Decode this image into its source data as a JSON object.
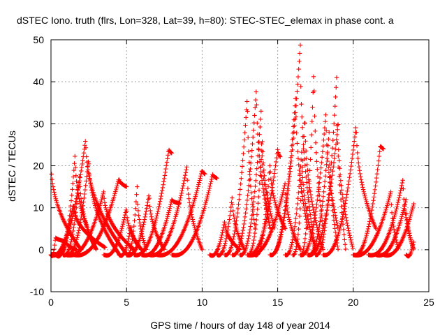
{
  "chart_data": {
    "type": "scatter",
    "title": "dSTEC Iono. truth (flrs, Lon=328, Lat=39, h=80): STEC-STEC_elemax in phase cont. a",
    "xlabel": "GPS time / hours of day 148 of year 2014",
    "ylabel": "dSTEC  / TECUs",
    "xlim": [
      0,
      25
    ],
    "ylim": [
      -10,
      50
    ],
    "x_ticks": [
      0,
      5,
      10,
      15,
      20,
      25
    ],
    "y_ticks": [
      -10,
      0,
      10,
      20,
      30,
      40,
      50
    ],
    "grid": true,
    "marker": "+",
    "color": "#ff0000",
    "arcs": [
      {
        "t0": 0.0,
        "tpk": 0.0,
        "t1": 2.0,
        "peak": 21.5,
        "end": 0.0
      },
      {
        "t0": 0.0,
        "tpk": 1.5,
        "t1": 3.6,
        "peak": 11.0,
        "end": 0.5
      },
      {
        "t0": 0.0,
        "tpk": 0.3,
        "t1": 1.0,
        "peak": 3.0,
        "end": 2.0
      },
      {
        "t0": 0.3,
        "tpk": 1.0,
        "t1": 1.7,
        "peak": 2.0,
        "end": 0.0
      },
      {
        "t0": 0.5,
        "tpk": 1.6,
        "t1": 3.0,
        "peak": 23.0,
        "end": 0.0
      },
      {
        "t0": 0.8,
        "tpk": 1.9,
        "t1": 3.0,
        "peak": 18.0,
        "end": 0.0
      },
      {
        "t0": 0.0,
        "tpk": 2.3,
        "t1": 5.0,
        "peak": 26.5,
        "end": -1.0
      },
      {
        "t0": 1.0,
        "tpk": 2.5,
        "t1": 4.5,
        "peak": 22.0,
        "end": -1.0
      },
      {
        "t0": 1.0,
        "tpk": 3.5,
        "t1": 5.5,
        "peak": 14.0,
        "end": 0.0
      },
      {
        "t0": 1.5,
        "tpk": 4.5,
        "t1": 5.0,
        "peak": 17.0,
        "end": 15.0
      },
      {
        "t0": 3.5,
        "tpk": 5.0,
        "t1": 6.0,
        "peak": 10.0,
        "end": 0.0
      },
      {
        "t0": 4.5,
        "tpk": 5.3,
        "t1": 6.0,
        "peak": 6.0,
        "end": 0.0
      },
      {
        "t0": 5.0,
        "tpk": 5.7,
        "t1": 6.3,
        "peak": 15.0,
        "end": 0.0
      },
      {
        "t0": 5.0,
        "tpk": 6.5,
        "t1": 7.5,
        "peak": 13.5,
        "end": 0.0
      },
      {
        "t0": 5.5,
        "tpk": 7.8,
        "t1": 8.0,
        "peak": 24.0,
        "end": 23.0
      },
      {
        "t0": 6.0,
        "tpk": 8.0,
        "t1": 8.5,
        "peak": 12.0,
        "end": 11.0
      },
      {
        "t0": 6.5,
        "tpk": 9.0,
        "t1": 10.0,
        "peak": 20.0,
        "end": 0.0
      },
      {
        "t0": 7.0,
        "tpk": 10.0,
        "t1": 10.2,
        "peak": 19.0,
        "end": 18.0
      },
      {
        "t0": 8.0,
        "tpk": 10.7,
        "t1": 11.0,
        "peak": 18.0,
        "end": 17.0
      },
      {
        "t0": 10.5,
        "tpk": 11.5,
        "t1": 12.5,
        "peak": 7.0,
        "end": 0.0
      },
      {
        "t0": 11.0,
        "tpk": 12.0,
        "t1": 12.8,
        "peak": 13.0,
        "end": 0.0
      },
      {
        "t0": 11.5,
        "tpk": 13.0,
        "t1": 13.5,
        "peak": 37.0,
        "end": 5.0
      },
      {
        "t0": 12.0,
        "tpk": 13.6,
        "t1": 14.5,
        "peak": 39.0,
        "end": 5.0
      },
      {
        "t0": 12.5,
        "tpk": 13.9,
        "t1": 14.5,
        "peak": 33.0,
        "end": 5.0
      },
      {
        "t0": 13.0,
        "tpk": 14.0,
        "t1": 14.8,
        "peak": 27.0,
        "end": 5.0
      },
      {
        "t0": 13.5,
        "tpk": 14.5,
        "t1": 15.5,
        "peak": 21.0,
        "end": 5.0
      },
      {
        "t0": 13.0,
        "tpk": 15.0,
        "t1": 15.2,
        "peak": 24.0,
        "end": 22.0
      },
      {
        "t0": 13.0,
        "tpk": 15.5,
        "t1": 16.5,
        "peak": 16.0,
        "end": 0.0
      },
      {
        "t0": 14.5,
        "tpk": 16.2,
        "t1": 17.0,
        "peak": 37.0,
        "end": 5.0
      },
      {
        "t0": 14.5,
        "tpk": 16.5,
        "t1": 17.5,
        "peak": 49.0,
        "end": 0.0
      },
      {
        "t0": 15.5,
        "tpk": 16.6,
        "t1": 17.5,
        "peak": 24.0,
        "end": 0.0
      },
      {
        "t0": 16.0,
        "tpk": 16.8,
        "t1": 18.0,
        "peak": 33.0,
        "end": 0.0
      },
      {
        "t0": 16.5,
        "tpk": 17.4,
        "t1": 18.0,
        "peak": 44.0,
        "end": 5.0
      },
      {
        "t0": 16.5,
        "tpk": 18.2,
        "t1": 19.0,
        "peak": 33.0,
        "end": 5.0
      },
      {
        "t0": 17.0,
        "tpk": 18.4,
        "t1": 19.0,
        "peak": 28.0,
        "end": 0.0
      },
      {
        "t0": 17.5,
        "tpk": 18.9,
        "t1": 19.5,
        "peak": 41.0,
        "end": 0.0
      },
      {
        "t0": 17.0,
        "tpk": 19.0,
        "t1": 20.0,
        "peak": 30.0,
        "end": 0.0
      },
      {
        "t0": 18.0,
        "tpk": 20.2,
        "t1": 21.5,
        "peak": 30.0,
        "end": 5.0
      },
      {
        "t0": 20.0,
        "tpk": 21.8,
        "t1": 22.0,
        "peak": 25.0,
        "end": 24.0
      },
      {
        "t0": 20.0,
        "tpk": 22.5,
        "t1": 23.0,
        "peak": 14.0,
        "end": 0.0
      },
      {
        "t0": 21.0,
        "tpk": 23.3,
        "t1": 24.0,
        "peak": 17.0,
        "end": 0.0
      },
      {
        "t0": 21.5,
        "tpk": 23.5,
        "t1": 24.0,
        "peak": 12.0,
        "end": 0.0
      },
      {
        "t0": 22.0,
        "tpk": 24.0,
        "t1": 24.0,
        "peak": 11.0,
        "end": 11.0
      },
      {
        "t0": 23.5,
        "tpk": 24.0,
        "t1": 24.0,
        "peak": 2.0,
        "end": 2.0
      }
    ]
  }
}
